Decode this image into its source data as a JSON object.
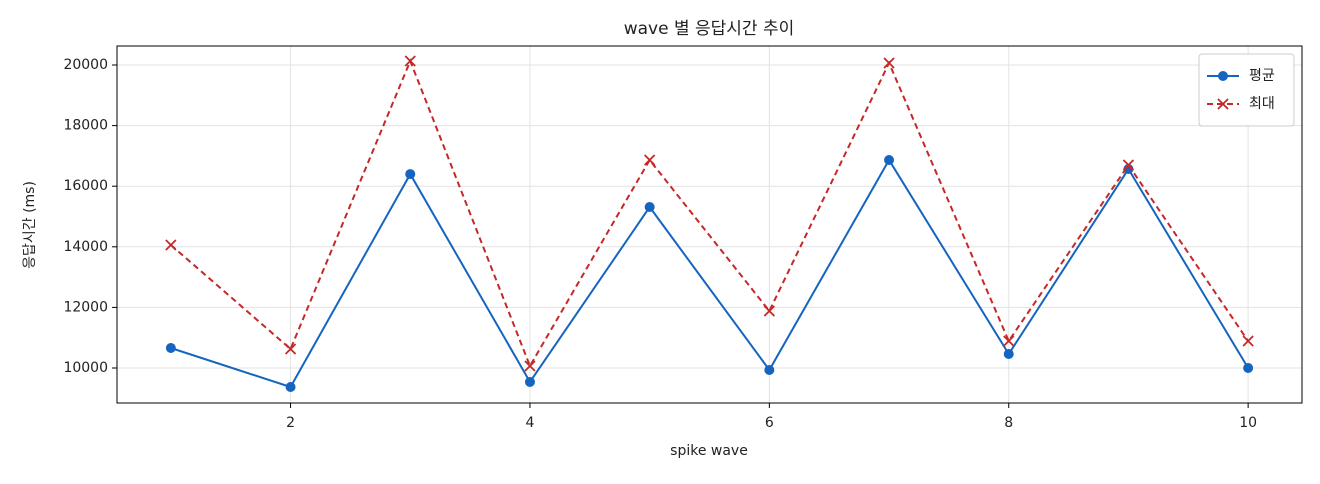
{
  "chart_data": {
    "type": "line",
    "title": "wave 별 응답시간 추이",
    "xlabel": "spike wave",
    "ylabel": "응답시간 (ms)",
    "x": [
      1,
      2,
      3,
      4,
      5,
      6,
      7,
      8,
      9,
      10
    ],
    "series": [
      {
        "name": "평균",
        "color": "#1565c0",
        "marker": "circle",
        "linestyle": "solid",
        "values": [
          10660,
          9373,
          16400,
          9540,
          15313,
          9934,
          16864,
          10462,
          16567,
          10000
        ]
      },
      {
        "name": "최대",
        "color": "#c62828",
        "marker": "x",
        "linestyle": "dashed",
        "values": [
          14059,
          10627,
          20132,
          10066,
          16864,
          11881,
          20066,
          10891,
          16700,
          10891
        ]
      }
    ],
    "xlim": [
      0.55,
      10.45
    ],
    "ylim": [
      8845,
      20627
    ],
    "xticks": [
      2,
      4,
      6,
      8,
      10
    ],
    "yticks": [
      10000,
      12000,
      14000,
      16000,
      18000,
      20000
    ],
    "grid": true,
    "legend": "upper right"
  }
}
